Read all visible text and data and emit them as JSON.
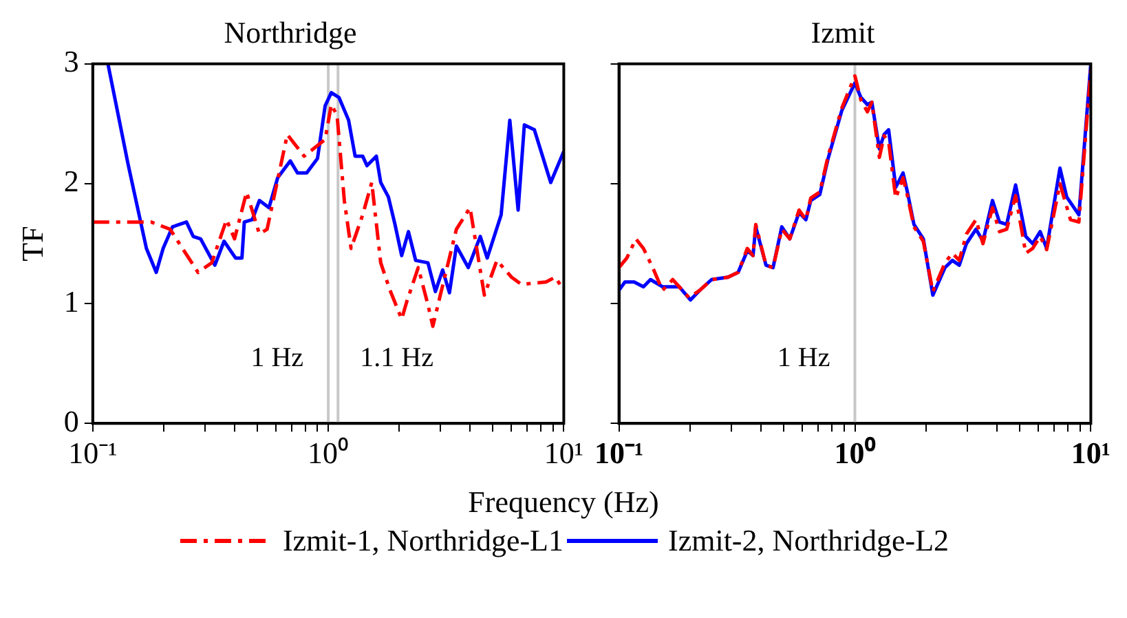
{
  "chart_data": [
    {
      "type": "line",
      "title": "Northridge",
      "xlabel": "Frequency (Hz)",
      "ylabel": "TF",
      "log": "x",
      "grid": false,
      "legend": "bottom",
      "marker": "none",
      "xlim": [
        0.1,
        10
      ],
      "xticks": [
        {
          "value": 0.1,
          "label": "10⁻¹"
        },
        {
          "value": 0.2,
          "label": null
        },
        {
          "value": 0.3,
          "label": null
        },
        {
          "value": 0.4,
          "label": null
        },
        {
          "value": 0.5,
          "label": null
        },
        {
          "value": 0.6,
          "label": null
        },
        {
          "value": 0.7,
          "label": null
        },
        {
          "value": 0.8,
          "label": null
        },
        {
          "value": 0.9,
          "label": null
        },
        {
          "value": 1,
          "label": "10⁰"
        },
        {
          "value": 2,
          "label": null
        },
        {
          "value": 3,
          "label": null
        },
        {
          "value": 4,
          "label": null
        },
        {
          "value": 5,
          "label": null
        },
        {
          "value": 6,
          "label": null
        },
        {
          "value": 7,
          "label": null
        },
        {
          "value": 8,
          "label": null
        },
        {
          "value": 9,
          "label": null
        },
        {
          "value": 10,
          "label": "10¹"
        }
      ],
      "ylim": [
        0,
        3
      ],
      "yticks": [
        0,
        1,
        2,
        3
      ],
      "ref_lines": [
        {
          "axis": "x",
          "value": 1,
          "label": "1 Hz",
          "color": "#c8c8c8"
        },
        {
          "axis": "x",
          "value": 1.1,
          "label": "1.1 Hz",
          "color": "#c8c8c8"
        }
      ],
      "series": [
        {
          "name": "Izmit-1, Northridge-L1",
          "color": "#ff0000",
          "line_style": "dashed",
          "x": [
            0.1,
            0.177,
            0.213,
            0.28,
            0.32,
            0.37,
            0.4,
            0.45,
            0.51,
            0.55,
            0.67,
            0.79,
            0.97,
            1.03,
            1.09,
            1.17,
            1.25,
            1.4,
            1.53,
            1.67,
            1.83,
            2.05,
            2.15,
            2.41,
            2.65,
            2.78,
            2.99,
            3.5,
            4.0,
            4.6,
            5.2,
            6.0,
            6.6,
            8.4,
            9.2,
            10
          ],
          "values": [
            1.68,
            1.68,
            1.62,
            1.26,
            1.34,
            1.7,
            1.54,
            1.93,
            1.58,
            1.62,
            2.41,
            2.23,
            2.37,
            2.66,
            2.57,
            1.86,
            1.46,
            1.74,
            2.01,
            1.34,
            1.11,
            0.87,
            1.01,
            1.3,
            0.99,
            0.81,
            1.07,
            1.62,
            1.8,
            1.07,
            1.36,
            1.22,
            1.16,
            1.18,
            1.22,
            1.11
          ]
        },
        {
          "name": "Izmit-2, Northridge-L2",
          "color": "#0000ff",
          "line_style": "solid",
          "x": [
            0.116,
            0.141,
            0.169,
            0.186,
            0.199,
            0.218,
            0.25,
            0.267,
            0.287,
            0.33,
            0.361,
            0.404,
            0.43,
            0.44,
            0.476,
            0.51,
            0.56,
            0.61,
            0.69,
            0.74,
            0.81,
            0.9,
            0.97,
            1.03,
            1.11,
            1.22,
            1.3,
            1.4,
            1.46,
            1.6,
            1.67,
            1.8,
            1.92,
            2.05,
            2.19,
            2.35,
            2.65,
            2.85,
            3.06,
            3.27,
            3.5,
            3.93,
            4.42,
            4.73,
            5.42,
            5.9,
            6.4,
            6.8,
            7.5,
            8.8,
            10
          ],
          "values": [
            3.0,
            2.17,
            1.46,
            1.26,
            1.46,
            1.64,
            1.68,
            1.56,
            1.54,
            1.32,
            1.52,
            1.38,
            1.38,
            1.68,
            1.7,
            1.86,
            1.8,
            2.05,
            2.19,
            2.09,
            2.09,
            2.21,
            2.65,
            2.76,
            2.72,
            2.53,
            2.23,
            2.23,
            2.15,
            2.23,
            2.01,
            1.89,
            1.66,
            1.4,
            1.6,
            1.36,
            1.34,
            1.1,
            1.28,
            1.09,
            1.48,
            1.3,
            1.56,
            1.38,
            1.74,
            2.53,
            1.78,
            2.49,
            2.45,
            2.01,
            2.27
          ]
        }
      ]
    },
    {
      "type": "line",
      "title": "Izmit",
      "log": "x",
      "grid": false,
      "marker": "none",
      "tick_labels": "x",
      "xlim": [
        0.1,
        10
      ],
      "xticks": [
        {
          "value": 0.1,
          "label": "10⁻¹"
        },
        {
          "value": 0.2,
          "label": null
        },
        {
          "value": 0.3,
          "label": null
        },
        {
          "value": 0.4,
          "label": null
        },
        {
          "value": 0.5,
          "label": null
        },
        {
          "value": 0.6,
          "label": null
        },
        {
          "value": 0.7,
          "label": null
        },
        {
          "value": 0.8,
          "label": null
        },
        {
          "value": 0.9,
          "label": null
        },
        {
          "value": 1,
          "label": "10⁰"
        },
        {
          "value": 2,
          "label": null
        },
        {
          "value": 3,
          "label": null
        },
        {
          "value": 4,
          "label": null
        },
        {
          "value": 5,
          "label": null
        },
        {
          "value": 6,
          "label": null
        },
        {
          "value": 7,
          "label": null
        },
        {
          "value": 8,
          "label": null
        },
        {
          "value": 9,
          "label": null
        },
        {
          "value": 10,
          "label": "10¹"
        }
      ],
      "ylim": [
        0,
        3
      ],
      "yticks": [
        0,
        1,
        2,
        3
      ],
      "ref_lines": [
        {
          "axis": "x",
          "value": 1,
          "label": "1 Hz",
          "color": "#c8c8c8"
        }
      ],
      "series": [
        {
          "color": "#ff0000",
          "line_style": "dashed",
          "x": [
            0.1,
            0.108,
            0.118,
            0.127,
            0.139,
            0.153,
            0.169,
            0.198,
            0.22,
            0.247,
            0.29,
            0.32,
            0.35,
            0.37,
            0.38,
            0.42,
            0.45,
            0.49,
            0.53,
            0.58,
            0.62,
            0.65,
            0.71,
            0.77,
            0.88,
            1.0,
            1.06,
            1.13,
            1.18,
            1.27,
            1.33,
            1.39,
            1.49,
            1.6,
            1.67,
            1.78,
            1.95,
            2.14,
            2.41,
            2.59,
            2.77,
            2.97,
            3.26,
            3.49,
            3.83,
            4.1,
            4.4,
            4.8,
            5.3,
            5.67,
            6.1,
            6.5,
            7.4,
            8.2,
            8.9,
            10
          ],
          "values": [
            1.3,
            1.38,
            1.54,
            1.46,
            1.3,
            1.11,
            1.2,
            1.05,
            1.11,
            1.2,
            1.22,
            1.26,
            1.46,
            1.4,
            1.66,
            1.32,
            1.3,
            1.62,
            1.54,
            1.78,
            1.7,
            1.88,
            1.93,
            2.23,
            2.63,
            2.9,
            2.7,
            2.6,
            2.68,
            2.22,
            2.4,
            2.35,
            1.88,
            2.05,
            1.9,
            1.64,
            1.52,
            1.1,
            1.34,
            1.42,
            1.36,
            1.58,
            1.7,
            1.5,
            1.8,
            1.6,
            1.62,
            1.9,
            1.42,
            1.46,
            1.56,
            1.45,
            2.0,
            1.7,
            1.68,
            2.95
          ]
        },
        {
          "color": "#0000ff",
          "line_style": "solid",
          "x": [
            0.1,
            0.106,
            0.116,
            0.127,
            0.136,
            0.153,
            0.18,
            0.201,
            0.22,
            0.247,
            0.29,
            0.32,
            0.35,
            0.37,
            0.38,
            0.42,
            0.45,
            0.49,
            0.53,
            0.58,
            0.62,
            0.65,
            0.71,
            0.77,
            0.88,
            1.0,
            1.06,
            1.13,
            1.18,
            1.27,
            1.33,
            1.39,
            1.49,
            1.6,
            1.67,
            1.78,
            1.95,
            2.14,
            2.41,
            2.59,
            2.77,
            2.97,
            3.26,
            3.49,
            3.83,
            4.1,
            4.4,
            4.8,
            5.3,
            5.67,
            6.1,
            6.5,
            7.4,
            7.9,
            8.9,
            10
          ],
          "values": [
            1.11,
            1.18,
            1.18,
            1.14,
            1.2,
            1.14,
            1.14,
            1.03,
            1.11,
            1.2,
            1.22,
            1.26,
            1.44,
            1.4,
            1.64,
            1.32,
            1.3,
            1.64,
            1.54,
            1.76,
            1.7,
            1.86,
            1.91,
            2.21,
            2.61,
            2.84,
            2.72,
            2.66,
            2.68,
            2.29,
            2.41,
            2.45,
            1.97,
            2.09,
            1.93,
            1.66,
            1.54,
            1.07,
            1.3,
            1.36,
            1.32,
            1.5,
            1.62,
            1.52,
            1.86,
            1.68,
            1.66,
            1.99,
            1.56,
            1.5,
            1.6,
            1.46,
            2.13,
            1.89,
            1.74,
            3.0
          ]
        }
      ]
    }
  ]
}
